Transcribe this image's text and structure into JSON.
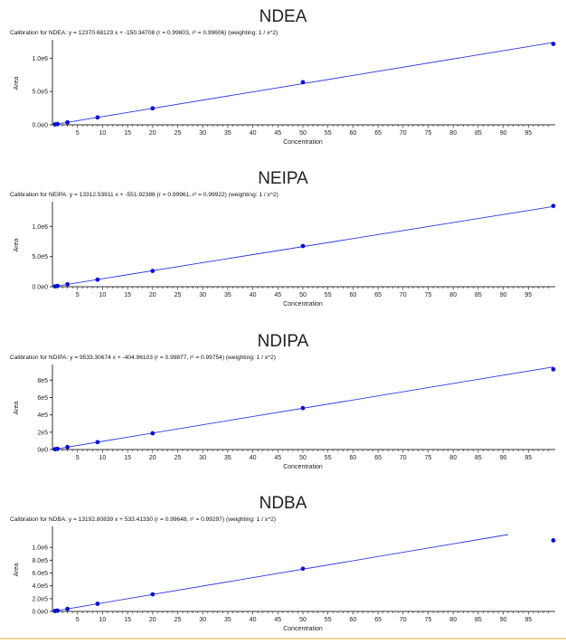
{
  "chart_data": [
    {
      "type": "scatter",
      "title": "NDEA",
      "subtitle": "Calibration for NDEA: y = 12370.68123 x + -150.34708 (r = 0.99803, r² = 0.99606)  (weighting: 1 / x^2)",
      "xlabel": "Concentration",
      "ylabel": "Area",
      "xlim": [
        0,
        100
      ],
      "ylim": [
        0,
        1250000
      ],
      "x_ticks": [
        5,
        10,
        15,
        20,
        25,
        30,
        35,
        40,
        45,
        50,
        55,
        60,
        65,
        70,
        75,
        80,
        85,
        90,
        95
      ],
      "y_ticks": [
        {
          "value": 0,
          "label": "0.0e0"
        },
        {
          "value": 500000,
          "label": "5.0e5"
        },
        {
          "value": 1000000,
          "label": "1.0e6"
        }
      ],
      "points": [
        {
          "x": 0.5,
          "y": 6000
        },
        {
          "x": 1,
          "y": 12400
        },
        {
          "x": 3,
          "y": 37000
        },
        {
          "x": 9,
          "y": 111000
        },
        {
          "x": 20,
          "y": 247000
        },
        {
          "x": 50,
          "y": 640000
        },
        {
          "x": 100,
          "y": 1215000
        }
      ],
      "fit": {
        "slope": 12370.68123,
        "intercept": -150.34708,
        "x_range": [
          0.3,
          100
        ]
      },
      "line_color": "#2c38e0",
      "point_color": "#0a10d8"
    },
    {
      "type": "scatter",
      "title": "NEIPA",
      "subtitle": "Calibration for NEIPA: y = 13312.53911 x + -551.92388 (r = 0.99961, r² = 0.99922)  (weighting: 1 / x^2)",
      "xlabel": "Concentration",
      "ylabel": "Area",
      "xlim": [
        0,
        100
      ],
      "ylim": [
        0,
        1380000
      ],
      "x_ticks": [
        5,
        10,
        15,
        20,
        25,
        30,
        35,
        40,
        45,
        50,
        55,
        60,
        65,
        70,
        75,
        80,
        85,
        90,
        95
      ],
      "y_ticks": [
        {
          "value": 0,
          "label": "0.0e0"
        },
        {
          "value": 500000,
          "label": "5.0e5"
        },
        {
          "value": 1000000,
          "label": "1.0e6"
        }
      ],
      "points": [
        {
          "x": 0.5,
          "y": 6000
        },
        {
          "x": 1,
          "y": 13000
        },
        {
          "x": 3,
          "y": 40000
        },
        {
          "x": 9,
          "y": 118000
        },
        {
          "x": 20,
          "y": 262000
        },
        {
          "x": 50,
          "y": 675000
        },
        {
          "x": 100,
          "y": 1340000
        }
      ],
      "fit": {
        "slope": 13312.53911,
        "intercept": -551.92388,
        "x_range": [
          0.3,
          100
        ]
      },
      "line_color": "#2c38e0",
      "point_color": "#0a10d8"
    },
    {
      "type": "scatter",
      "title": "NDIPA",
      "subtitle": "Calibration for NDIPA: y = 9533.30674 x + -404.96103 (r = 0.99877, r² = 0.99754)  (weighting: 1 / x^2)",
      "xlabel": "Concentration",
      "ylabel": "Area",
      "xlim": [
        0,
        100
      ],
      "ylim": [
        0,
        960000
      ],
      "x_ticks": [
        5,
        10,
        15,
        20,
        25,
        30,
        35,
        40,
        45,
        50,
        55,
        60,
        65,
        70,
        75,
        80,
        85,
        90,
        95
      ],
      "y_ticks": [
        {
          "value": 0,
          "label": "0e0"
        },
        {
          "value": 200000,
          "label": "2e5"
        },
        {
          "value": 400000,
          "label": "4e5"
        },
        {
          "value": 600000,
          "label": "6e5"
        },
        {
          "value": 800000,
          "label": "8e5"
        }
      ],
      "points": [
        {
          "x": 0.5,
          "y": 4000
        },
        {
          "x": 1,
          "y": 9000
        },
        {
          "x": 3,
          "y": 28000
        },
        {
          "x": 9,
          "y": 85000
        },
        {
          "x": 20,
          "y": 187000
        },
        {
          "x": 50,
          "y": 478000
        },
        {
          "x": 100,
          "y": 925000
        }
      ],
      "fit": {
        "slope": 9533.30674,
        "intercept": -404.96103,
        "x_range": [
          0.3,
          100
        ]
      },
      "line_color": "#2c38e0",
      "point_color": "#0a10d8"
    },
    {
      "type": "scatter",
      "title": "NDBA",
      "subtitle": "Calibration for NDBA: y = 13192.80839 x + 533.41330 (r = 0.99648, r² = 0.99297)  (weighting: 1 / x^2)",
      "xlabel": "Concentration",
      "ylabel": "Area",
      "xlim": [
        0,
        100
      ],
      "ylim": [
        0,
        1300000
      ],
      "x_ticks": [
        5,
        10,
        15,
        20,
        25,
        30,
        35,
        40,
        45,
        50,
        55,
        60,
        65,
        70,
        75,
        80,
        85,
        90,
        95
      ],
      "y_ticks": [
        {
          "value": 0,
          "label": "0.0e0"
        },
        {
          "value": 200000,
          "label": "2.0e5"
        },
        {
          "value": 400000,
          "label": "4.0e5"
        },
        {
          "value": 600000,
          "label": "6.0e5"
        },
        {
          "value": 800000,
          "label": "8.0e5"
        },
        {
          "value": 1000000,
          "label": "1.0e6"
        }
      ],
      "points": [
        {
          "x": 0.5,
          "y": 6000
        },
        {
          "x": 1,
          "y": 13000
        },
        {
          "x": 3,
          "y": 40000
        },
        {
          "x": 9,
          "y": 120000
        },
        {
          "x": 20,
          "y": 267000
        },
        {
          "x": 50,
          "y": 668000
        },
        {
          "x": 100,
          "y": 1110000
        }
      ],
      "fit": {
        "slope": 13192.80839,
        "intercept": 533.4133,
        "x_range": [
          0.3,
          91
        ]
      },
      "line_color": "#2c38e0",
      "point_color": "#0a10d8"
    }
  ]
}
